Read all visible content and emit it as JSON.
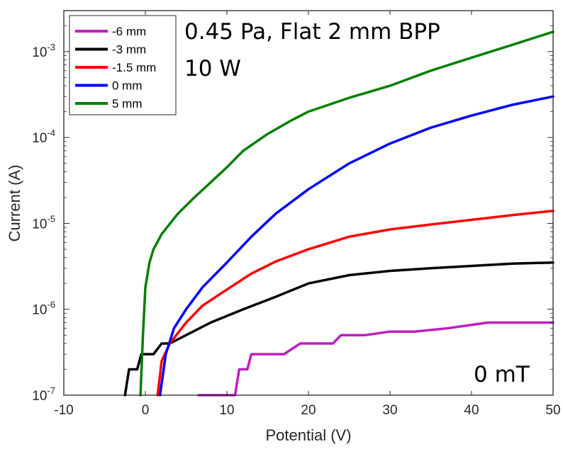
{
  "chart_data": {
    "type": "line",
    "xlabel": "Potential (V)",
    "ylabel": "Current (A)",
    "xlim": [
      -10,
      50
    ],
    "ylim": [
      1e-07,
      0.003
    ],
    "yscale": "log",
    "xticks": [
      "-10",
      "0",
      "10",
      "20",
      "30",
      "40",
      "50"
    ],
    "yticks": [
      {
        "base": "10",
        "exp": "-7"
      },
      {
        "base": "10",
        "exp": "-6"
      },
      {
        "base": "10",
        "exp": "-5"
      },
      {
        "base": "10",
        "exp": "-4"
      },
      {
        "base": "10",
        "exp": "-3"
      }
    ],
    "annotations": {
      "line1": "0.45 Pa, Flat 2 mm BPP",
      "line2": "10 W",
      "field": "0 mT"
    },
    "legend_position": "top-left",
    "series": [
      {
        "name": "-6 mm",
        "color": "#BE1EBE",
        "points": [
          [
            6.5,
            1e-07
          ],
          [
            8,
            1e-07
          ],
          [
            11,
            1e-07
          ],
          [
            11.5,
            2e-07
          ],
          [
            12.5,
            2e-07
          ],
          [
            13,
            3e-07
          ],
          [
            15,
            3e-07
          ],
          [
            17,
            3e-07
          ],
          [
            19,
            4e-07
          ],
          [
            21,
            4e-07
          ],
          [
            23,
            4e-07
          ],
          [
            24,
            5e-07
          ],
          [
            27,
            5e-07
          ],
          [
            30,
            5.5e-07
          ],
          [
            33,
            5.5e-07
          ],
          [
            37,
            6e-07
          ],
          [
            42,
            7e-07
          ],
          [
            46,
            7e-07
          ],
          [
            50,
            7e-07
          ]
        ]
      },
      {
        "name": "-3 mm",
        "color": "#000000",
        "points": [
          [
            -2.5,
            1e-07
          ],
          [
            -2,
            2e-07
          ],
          [
            -1,
            2e-07
          ],
          [
            -0.5,
            3e-07
          ],
          [
            1,
            3e-07
          ],
          [
            2,
            4e-07
          ],
          [
            3,
            4e-07
          ],
          [
            5,
            5e-07
          ],
          [
            8,
            7e-07
          ],
          [
            12,
            1e-06
          ],
          [
            16,
            1.4e-06
          ],
          [
            20,
            2e-06
          ],
          [
            25,
            2.5e-06
          ],
          [
            30,
            2.8e-06
          ],
          [
            35,
            3e-06
          ],
          [
            40,
            3.2e-06
          ],
          [
            45,
            3.4e-06
          ],
          [
            50,
            3.5e-06
          ]
        ]
      },
      {
        "name": "-1.5 mm",
        "color": "#FF0000",
        "points": [
          [
            1.5,
            1e-07
          ],
          [
            2,
            2.5e-07
          ],
          [
            3,
            4e-07
          ],
          [
            5,
            7e-07
          ],
          [
            7,
            1.1e-06
          ],
          [
            10,
            1.7e-06
          ],
          [
            13,
            2.6e-06
          ],
          [
            16,
            3.6e-06
          ],
          [
            20,
            5e-06
          ],
          [
            25,
            7e-06
          ],
          [
            30,
            8.5e-06
          ],
          [
            35,
            9.7e-06
          ],
          [
            40,
            1.1e-05
          ],
          [
            45,
            1.25e-05
          ],
          [
            50,
            1.4e-05
          ]
        ]
      },
      {
        "name": "0 mm",
        "color": "#0000FF",
        "points": [
          [
            1.8,
            1e-07
          ],
          [
            2.5,
            3e-07
          ],
          [
            3.5,
            6e-07
          ],
          [
            5,
            1e-06
          ],
          [
            7,
            1.8e-06
          ],
          [
            10,
            3.5e-06
          ],
          [
            13,
            7e-06
          ],
          [
            16,
            1.3e-05
          ],
          [
            20,
            2.5e-05
          ],
          [
            25,
            5e-05
          ],
          [
            30,
            8.5e-05
          ],
          [
            35,
            0.00013
          ],
          [
            40,
            0.00018
          ],
          [
            45,
            0.00024
          ],
          [
            50,
            0.0003
          ]
        ]
      },
      {
        "name": "5 mm",
        "color": "#008000",
        "points": [
          [
            -0.6,
            1e-07
          ],
          [
            -0.3,
            5e-07
          ],
          [
            0,
            1.8e-06
          ],
          [
            0.5,
            3.5e-06
          ],
          [
            1,
            5e-06
          ],
          [
            2,
            7.5e-06
          ],
          [
            4,
            1.3e-05
          ],
          [
            6,
            2e-05
          ],
          [
            8,
            3e-05
          ],
          [
            10,
            4.5e-05
          ],
          [
            12,
            7e-05
          ],
          [
            15,
            0.00011
          ],
          [
            18,
            0.00016
          ],
          [
            20,
            0.0002
          ],
          [
            25,
            0.00029
          ],
          [
            30,
            0.0004
          ],
          [
            35,
            0.0006
          ],
          [
            40,
            0.00085
          ],
          [
            45,
            0.0012
          ],
          [
            50,
            0.0017
          ]
        ]
      }
    ]
  }
}
